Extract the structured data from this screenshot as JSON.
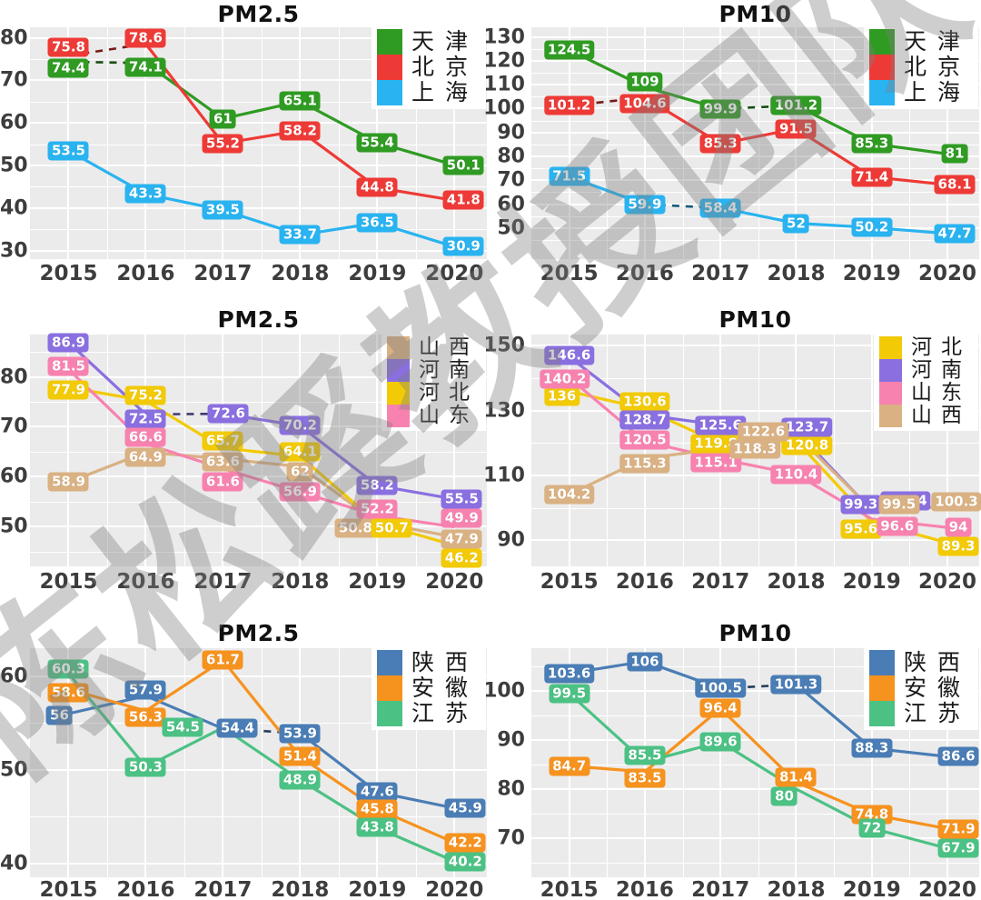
{
  "watermark": {
    "text": "陈松蹊教授团队",
    "color": "#7d7d7d"
  },
  "x_years": [
    "2015",
    "2016",
    "2017",
    "2018",
    "2019",
    "2020"
  ],
  "chart_data": [
    {
      "type": "line",
      "title": "PM2.5",
      "x": [
        2015,
        2016,
        2017,
        2018,
        2019,
        2020
      ],
      "ylim": [
        28,
        82.5
      ],
      "yticks": [
        30,
        40,
        50,
        60,
        70,
        80
      ],
      "grid": true,
      "legend_position": "top-right",
      "series": [
        {
          "name": "天津",
          "color": "#2f9b22",
          "values": [
            74.4,
            74.1,
            61,
            65.1,
            55.4,
            50.1
          ],
          "dashed_segments": [
            [
              0,
              1
            ]
          ],
          "label_offsets": [
            [
              0,
              7
            ],
            [
              0,
              5
            ],
            [
              0,
              0
            ],
            [
              0,
              0
            ],
            [
              0,
              0
            ],
            [
              10,
              0
            ]
          ]
        },
        {
          "name": "北京",
          "color": "#ee3a36",
          "values": [
            75.8,
            78.6,
            55.2,
            58.2,
            44.8,
            41.8
          ],
          "dashed_segments": [
            [
              0,
              1
            ]
          ],
          "label_offsets": [
            [
              0,
              -9
            ],
            [
              0,
              -6
            ],
            [
              0,
              0
            ],
            [
              0,
              0
            ],
            [
              0,
              0
            ],
            [
              10,
              0
            ]
          ]
        },
        {
          "name": "上海",
          "color": "#29b3f0",
          "values": [
            53.5,
            43.3,
            39.5,
            33.7,
            36.5,
            30.9
          ],
          "dashed_segments": [],
          "label_offsets": [
            [
              0,
              0
            ],
            [
              0,
              0
            ],
            [
              0,
              0
            ],
            [
              0,
              0
            ],
            [
              0,
              0
            ],
            [
              10,
              0
            ]
          ]
        }
      ]
    },
    {
      "type": "line",
      "title": "PM10",
      "x": [
        2015,
        2016,
        2017,
        2018,
        2019,
        2020
      ],
      "ylim": [
        37,
        134
      ],
      "yticks": [
        50,
        60,
        70,
        80,
        90,
        100,
        110,
        120,
        130
      ],
      "grid": true,
      "legend_position": "top-right",
      "series": [
        {
          "name": "天津",
          "color": "#2f9b22",
          "values": [
            124.5,
            109,
            99.9,
            101.2,
            85.3,
            81
          ],
          "dashed_segments": [
            [
              2,
              3
            ]
          ],
          "label_offsets": [
            [
              0,
              0
            ],
            [
              0,
              -6
            ],
            [
              0,
              0
            ],
            [
              0,
              0
            ],
            [
              0,
              0
            ],
            [
              8,
              0
            ]
          ]
        },
        {
          "name": "北京",
          "color": "#ee3a36",
          "values": [
            101.2,
            104.6,
            85.3,
            91.5,
            71.4,
            68.1
          ],
          "dashed_segments": [
            [
              0,
              1
            ]
          ],
          "label_offsets": [
            [
              0,
              0
            ],
            [
              0,
              7
            ],
            [
              0,
              0
            ],
            [
              0,
              0
            ],
            [
              0,
              0
            ],
            [
              8,
              0
            ]
          ]
        },
        {
          "name": "上海",
          "color": "#29b3f0",
          "values": [
            71.5,
            59.9,
            58.4,
            52,
            50.2,
            47.7
          ],
          "dashed_segments": [
            [
              1,
              2
            ]
          ],
          "label_offsets": [
            [
              0,
              0
            ],
            [
              0,
              0
            ],
            [
              0,
              0
            ],
            [
              0,
              0
            ],
            [
              0,
              0
            ],
            [
              8,
              0
            ]
          ]
        }
      ]
    },
    {
      "type": "line",
      "title": "PM2.5",
      "x": [
        2015,
        2016,
        2017,
        2018,
        2019,
        2020
      ],
      "ylim": [
        42,
        88.5
      ],
      "yticks": [
        50,
        60,
        70,
        80
      ],
      "grid": true,
      "legend_position": "top-right",
      "series": [
        {
          "name": "山西",
          "color": "#d9b183",
          "values": [
            58.9,
            64.9,
            63.6,
            62,
            50.8,
            47.9
          ],
          "dashed_segments": [],
          "label_offsets": [
            [
              0,
              0
            ],
            [
              0,
              6
            ],
            [
              0,
              3
            ],
            [
              0,
              6
            ],
            [
              -24,
              6
            ],
            [
              8,
              2
            ]
          ]
        },
        {
          "name": "河南",
          "color": "#8a6fe0",
          "values": [
            86.9,
            72.5,
            72.6,
            70.2,
            58.2,
            55.5
          ],
          "dashed_segments": [
            [
              1,
              2
            ]
          ],
          "label_offsets": [
            [
              0,
              0
            ],
            [
              0,
              5
            ],
            [
              6,
              0
            ],
            [
              0,
              0
            ],
            [
              0,
              0
            ],
            [
              8,
              0
            ]
          ]
        },
        {
          "name": "河北",
          "color": "#f2ca05",
          "values": [
            77.9,
            75.2,
            65.7,
            64.1,
            50.7,
            46.2
          ],
          "dashed_segments": [],
          "label_offsets": [
            [
              0,
              3
            ],
            [
              0,
              -6
            ],
            [
              0,
              -8
            ],
            [
              0,
              -5
            ],
            [
              16,
              6
            ],
            [
              8,
              14
            ]
          ]
        },
        {
          "name": "山东",
          "color": "#f782af",
          "values": [
            81.5,
            66.6,
            61.6,
            56.9,
            52.2,
            49.9
          ],
          "dashed_segments": [],
          "label_offsets": [
            [
              0,
              -3
            ],
            [
              0,
              -7
            ],
            [
              0,
              14
            ],
            [
              0,
              0
            ],
            [
              0,
              -7
            ],
            [
              8,
              -10
            ]
          ]
        }
      ]
    },
    {
      "type": "line",
      "title": "PM10",
      "x": [
        2015,
        2016,
        2017,
        2018,
        2019,
        2020
      ],
      "ylim": [
        82,
        153.5
      ],
      "yticks": [
        90,
        110,
        130,
        150
      ],
      "grid": true,
      "legend_position": "top-right",
      "series": [
        {
          "name": "河北",
          "color": "#f2ca05",
          "values": [
            136,
            130.6,
            119.8,
            120.8,
            95.6,
            89.3
          ],
          "dashed_segments": [],
          "label_offsets": [
            [
              -8,
              6
            ],
            [
              0,
              -8
            ],
            [
              -5,
              0
            ],
            [
              12,
              5
            ],
            [
              -12,
              8
            ],
            [
              12,
              4
            ]
          ]
        },
        {
          "name": "河南",
          "color": "#8a6fe0",
          "values": [
            146.6,
            128.7,
            125.6,
            123.7,
            99.3,
            100.4
          ],
          "dashed_segments": [],
          "label_offsets": [
            [
              0,
              -2
            ],
            [
              0,
              6
            ],
            [
              0,
              0
            ],
            [
              12,
              -4
            ],
            [
              -12,
              -6
            ],
            [
              -46,
              -6
            ]
          ]
        },
        {
          "name": "山东",
          "color": "#f782af",
          "values": [
            140.2,
            120.5,
            115.1,
            110.4,
            96.6,
            94
          ],
          "dashed_segments": [],
          "label_offsets": [
            [
              -5,
              2
            ],
            [
              0,
              -2
            ],
            [
              -5,
              4
            ],
            [
              0,
              0
            ],
            [
              28,
              8
            ],
            [
              12,
              0
            ]
          ]
        },
        {
          "name": "山西",
          "color": "#d9b183",
          "values": [
            104.2,
            115.3,
            118.3,
            122.6,
            99.5,
            100.3
          ],
          "dashed_segments": [],
          "label_offsets": [
            [
              0,
              0
            ],
            [
              0,
              6
            ],
            [
              38,
              0
            ],
            [
              -36,
              -3
            ],
            [
              30,
              -6
            ],
            [
              10,
              -6
            ]
          ]
        }
      ]
    },
    {
      "type": "line",
      "title": "PM2.5",
      "x": [
        2015,
        2016,
        2017,
        2018,
        2019,
        2020
      ],
      "ylim": [
        38.5,
        63
      ],
      "yticks": [
        40,
        50,
        60
      ],
      "grid": true,
      "legend_position": "top-right",
      "series": [
        {
          "name": "陕西",
          "color": "#4a7db5",
          "values": [
            56,
            57.9,
            54.4,
            53.9,
            47.6,
            45.9
          ],
          "dashed_segments": [
            [
              2,
              3
            ]
          ],
          "label_offsets": [
            [
              -10,
              2
            ],
            [
              0,
              -6
            ],
            [
              16,
              0
            ],
            [
              0,
              0
            ],
            [
              0,
              0
            ],
            [
              12,
              0
            ]
          ]
        },
        {
          "name": "安徽",
          "color": "#f6921e",
          "values": [
            58.6,
            56.3,
            61.7,
            51.4,
            45.8,
            42.2
          ],
          "dashed_segments": [],
          "label_offsets": [
            [
              0,
              4
            ],
            [
              0,
              7
            ],
            [
              0,
              0
            ],
            [
              0,
              0
            ],
            [
              0,
              0
            ],
            [
              12,
              0
            ]
          ]
        },
        {
          "name": "江苏",
          "color": "#4cc184",
          "values": [
            60.3,
            50.3,
            54.5,
            48.9,
            43.8,
            40.2
          ],
          "dashed_segments": [],
          "label_offsets": [
            [
              0,
              -5
            ],
            [
              0,
              0
            ],
            [
              -44,
              0
            ],
            [
              0,
              0
            ],
            [
              0,
              0
            ],
            [
              12,
              0
            ]
          ]
        }
      ]
    },
    {
      "type": "line",
      "title": "PM10",
      "x": [
        2015,
        2016,
        2017,
        2018,
        2019,
        2020
      ],
      "ylim": [
        62,
        108.7
      ],
      "yticks": [
        70,
        80,
        90,
        100
      ],
      "grid": true,
      "legend_position": "top-right",
      "series": [
        {
          "name": "陕西",
          "color": "#4a7db5",
          "values": [
            103.6,
            106,
            100.5,
            101.3,
            88.3,
            86.6
          ],
          "dashed_segments": [
            [
              2,
              3
            ]
          ],
          "label_offsets": [
            [
              0,
              0
            ],
            [
              0,
              0
            ],
            [
              0,
              0
            ],
            [
              0,
              0
            ],
            [
              0,
              0
            ],
            [
              12,
              0
            ]
          ]
        },
        {
          "name": "安徽",
          "color": "#f6921e",
          "values": [
            84.7,
            83.5,
            96.4,
            81.4,
            74.8,
            71.9
          ],
          "dashed_segments": [],
          "label_offsets": [
            [
              0,
              0
            ],
            [
              0,
              7
            ],
            [
              0,
              0
            ],
            [
              0,
              -5
            ],
            [
              0,
              0
            ],
            [
              12,
              0
            ]
          ]
        },
        {
          "name": "江苏",
          "color": "#4cc184",
          "values": [
            99.5,
            85.5,
            89.6,
            80,
            72,
            67.9
          ],
          "dashed_segments": [],
          "label_offsets": [
            [
              0,
              0
            ],
            [
              0,
              -7
            ],
            [
              0,
              0
            ],
            [
              -13,
              8
            ],
            [
              0,
              0
            ],
            [
              12,
              0
            ]
          ]
        }
      ]
    }
  ]
}
